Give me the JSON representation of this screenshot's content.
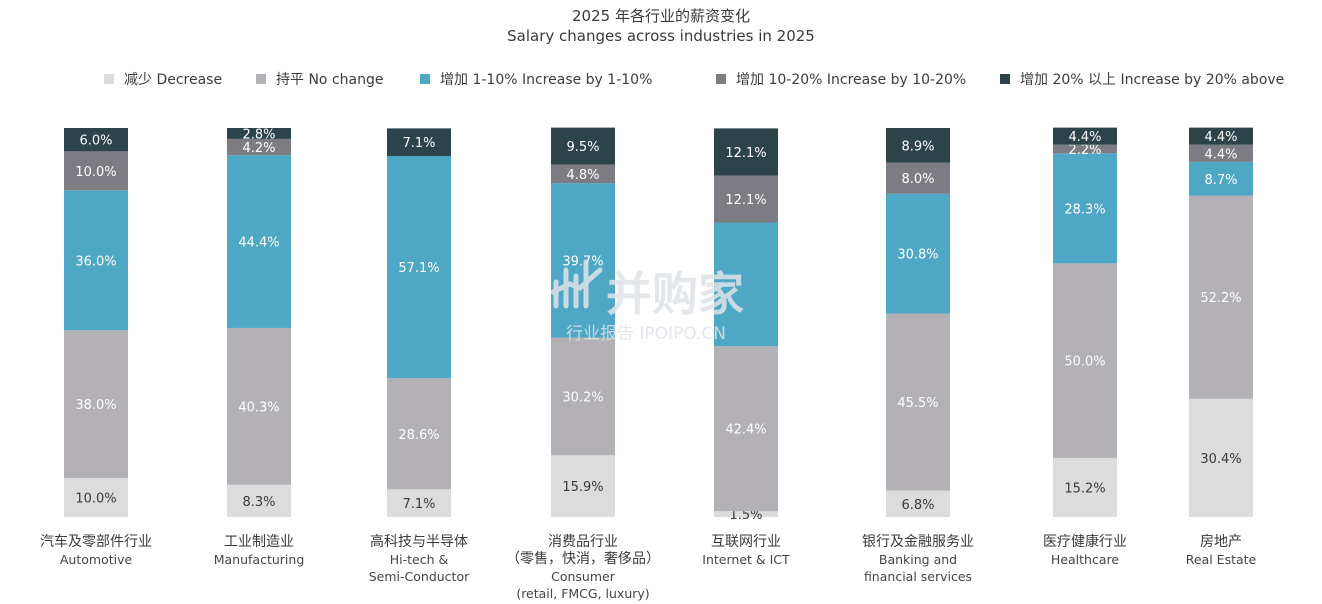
{
  "chart_data": {
    "type": "bar",
    "stacked": true,
    "normalized_percent": true,
    "title": "2025 年各行业的薪资变化",
    "subtitle": "Salary changes across industries in 2025",
    "legend_position": "top",
    "series": [
      {
        "name": "减少 Decrease",
        "color": "#dcdcdd",
        "label_color": "#3a3a3a",
        "values": [
          10.0,
          8.3,
          7.1,
          15.9,
          1.5,
          6.8,
          15.2,
          30.4
        ]
      },
      {
        "name": "持平 No change",
        "color": "#b3b0b6",
        "label_color": "#ffffff",
        "values": [
          38.0,
          40.3,
          28.6,
          30.2,
          42.4,
          45.5,
          50.0,
          52.2
        ]
      },
      {
        "name": "增加 1-10% Increase by 1-10%",
        "color": "#4ea7c4",
        "label_color": "#ffffff",
        "values": [
          36.0,
          44.4,
          57.1,
          39.7,
          31.8,
          30.8,
          28.3,
          8.7
        ]
      },
      {
        "name": "增加 10-20% Increase by 10-20%",
        "color": "#7d7c82",
        "label_color": "#ffffff",
        "values": [
          10.0,
          4.2,
          0,
          4.8,
          12.1,
          8.0,
          2.2,
          4.4
        ]
      },
      {
        "name": "增加 20% 以上 Increase by 20% above",
        "color": "#2c4349",
        "label_color": "#ffffff",
        "values": [
          6.0,
          2.8,
          7.1,
          9.5,
          12.1,
          8.9,
          4.4,
          4.4
        ]
      }
    ],
    "data_labels": [
      [
        "10.0%",
        "8.3%",
        "7.1%",
        "15.9%",
        "1.5%",
        "6.8%",
        "15.2%",
        "30.4%"
      ],
      [
        "38.0%",
        "40.3%",
        "28.6%",
        "30.2%",
        "42.4%",
        "45.5%",
        "50.0%",
        "52.2%"
      ],
      [
        "36.0%",
        "44.4%",
        "57.1%",
        "39.7%",
        "",
        "30.8%",
        "28.3%",
        "8.7%"
      ],
      [
        "10.0%",
        "4.2%",
        "",
        "4.8%",
        "12.1%",
        "8.0%",
        "2.2%",
        "4.4%"
      ],
      [
        "6.0%",
        "2.8%",
        "7.1%",
        "9.5%",
        "12.1%",
        "8.9%",
        "4.4%",
        "4.4%"
      ]
    ],
    "categories": [
      {
        "zh": "汽车及零部件行业",
        "en": [
          "Automotive"
        ]
      },
      {
        "zh": "工业制造业",
        "en": [
          "Manufacturing"
        ]
      },
      {
        "zh": "高科技与半导体",
        "en": [
          "Hi-tech &",
          "Semi-Conductor"
        ]
      },
      {
        "zh": "消费品行业",
        "zh2": "（零售，快消，奢侈品）",
        "en": [
          "Consumer",
          "(retail, FMCG, luxury)"
        ]
      },
      {
        "zh": "互联网行业",
        "en": [
          "Internet & ICT"
        ]
      },
      {
        "zh": "银行及金融服务业",
        "en": [
          "Banking and",
          "financial services"
        ]
      },
      {
        "zh": "医疗健康行业",
        "en": [
          "Healthcare"
        ]
      },
      {
        "zh": "房地产",
        "en": [
          "Real Estate"
        ]
      }
    ],
    "ylim": [
      0,
      100
    ],
    "grid": false
  },
  "watermark": {
    "brand": "并购家",
    "sub": "行业报告 IPOIPO.CN",
    "color": "#dfe3e8"
  }
}
